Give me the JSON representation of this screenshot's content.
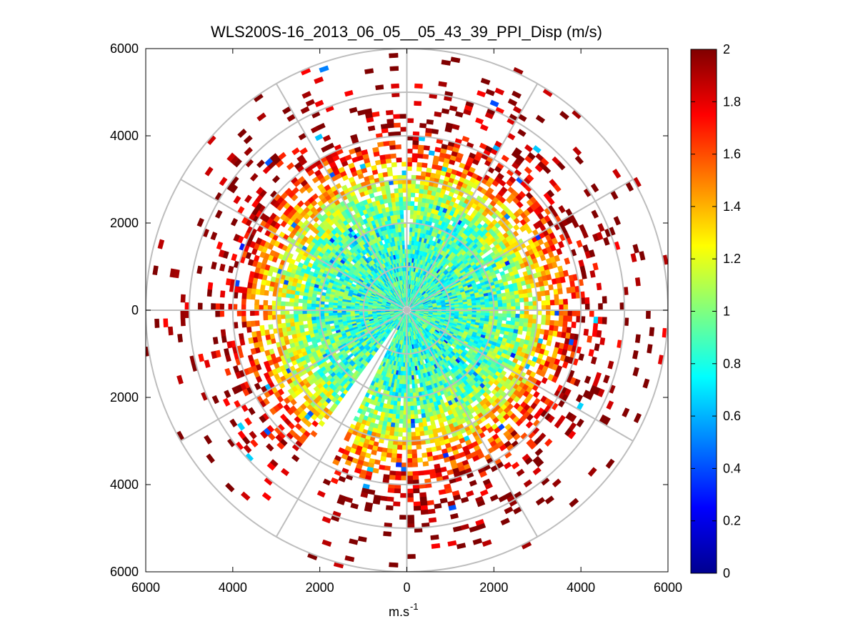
{
  "chart_data": {
    "type": "polar-ppi-scatter",
    "title": "WLS200S-16_2013_06_05__05_43_39_PPI_Disp (m/s)",
    "xlabel": "m.s",
    "xlabel_superscript": "-1",
    "ylabel": "",
    "x_ticks": [
      "6000",
      "4000",
      "2000",
      "0",
      "2000",
      "4000",
      "6000"
    ],
    "y_ticks": [
      "6000",
      "4000",
      "2000",
      "0",
      "2000",
      "4000",
      "6000"
    ],
    "xlim": [
      -6000,
      6000
    ],
    "ylim": [
      -6000,
      6000
    ],
    "polar_rings_m": [
      1000,
      2000,
      3000,
      4000,
      5000,
      6000
    ],
    "polar_spokes_deg": [
      0,
      30,
      60,
      90,
      120,
      150,
      180,
      210,
      240,
      270,
      300,
      330
    ],
    "range_gate_step_m": 100,
    "azimuth_step_deg": 2,
    "blocked_sector_deg": [
      205,
      214
    ],
    "colorbar": {
      "label": "",
      "ticks": [
        "0",
        "0.2",
        "0.4",
        "0.6",
        "0.8",
        "1",
        "1.2",
        "1.4",
        "1.6",
        "1.8",
        "2"
      ],
      "clim": [
        0,
        2
      ],
      "colormap": "jet"
    },
    "data_profile": {
      "description_of_values": "radial dispersion (m/s) vs range",
      "range_m": [
        500,
        1000,
        2000,
        2500,
        3000,
        3500,
        4000,
        4500,
        5000,
        5800
      ],
      "typical_value_m_s": [
        0.85,
        0.85,
        0.9,
        1.05,
        1.3,
        1.6,
        1.85,
        1.95,
        2.0,
        2.0
      ],
      "coverage_fraction": [
        1.0,
        1.0,
        0.97,
        0.9,
        0.78,
        0.6,
        0.38,
        0.2,
        0.1,
        0.05
      ]
    }
  }
}
